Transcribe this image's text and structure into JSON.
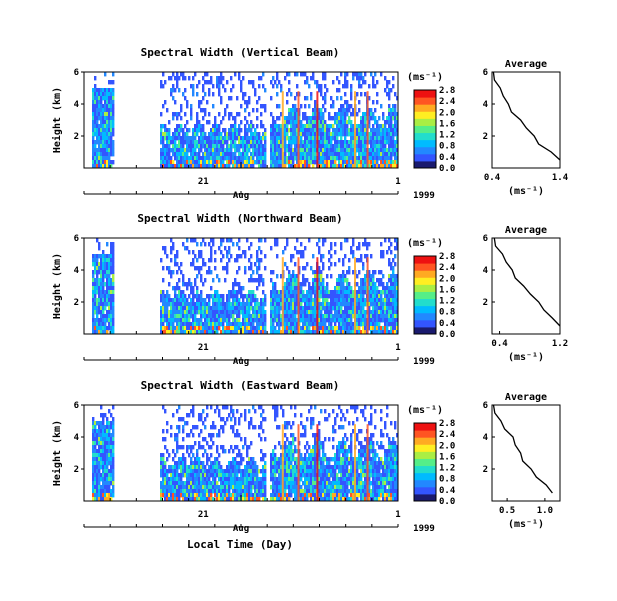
{
  "figure": {
    "xlabel": "Local Time (Day)",
    "ylabel": "Height (km)",
    "x_ticks": [
      "21",
      "1"
    ],
    "month": "Aug",
    "year": "1999",
    "cbar_unit": "(ms⁻¹)",
    "avg_xlabel": "(ms⁻¹)",
    "avg_title": "Average",
    "y_ticks": [
      "2",
      "4",
      "6"
    ],
    "cbar_ticks": [
      "0.0",
      "0.4",
      "0.8",
      "1.2",
      "1.6",
      "2.0",
      "2.4",
      "2.8"
    ],
    "colors": [
      "#1a1a6e",
      "#3355ff",
      "#2288ff",
      "#00bbff",
      "#22ddcc",
      "#55ee88",
      "#aaee44",
      "#ffee22",
      "#ffaa22",
      "#ff5522",
      "#ee1111"
    ]
  },
  "chart_data": [
    {
      "type": "heatmap",
      "title": "Spectral Width (Vertical Beam)",
      "xlabel": "Local Time (Day)",
      "ylabel": "Height (km)",
      "ylim": [
        0,
        6
      ],
      "colorbar": {
        "label": "(ms⁻¹)",
        "range": [
          0.0,
          2.8
        ]
      },
      "average_profile": {
        "title": "Average",
        "xlabel": "(ms⁻¹)",
        "x_ticks": [
          "0.4",
          "1.4"
        ],
        "xlim": [
          0.4,
          1.4
        ],
        "height_km": [
          6.0,
          5.5,
          5.0,
          4.5,
          4.0,
          3.5,
          3.0,
          2.5,
          2.0,
          1.5,
          1.0,
          0.5
        ],
        "width_ms": [
          0.42,
          0.45,
          0.5,
          0.58,
          0.62,
          0.7,
          0.8,
          0.92,
          1.0,
          1.1,
          1.25,
          1.4
        ]
      }
    },
    {
      "type": "heatmap",
      "title": "Spectral Width (Northward Beam)",
      "xlabel": "Local Time (Day)",
      "ylabel": "Height (km)",
      "ylim": [
        0,
        6
      ],
      "colorbar": {
        "label": "(ms⁻¹)",
        "range": [
          0.0,
          2.8
        ]
      },
      "average_profile": {
        "title": "Average",
        "xlabel": "(ms⁻¹)",
        "x_ticks": [
          "0.4",
          "1.2"
        ],
        "xlim": [
          0.3,
          1.2
        ],
        "height_km": [
          6.0,
          5.5,
          5.0,
          4.5,
          4.0,
          3.5,
          3.0,
          2.5,
          2.0,
          1.5,
          1.0,
          0.5
        ],
        "width_ms": [
          0.33,
          0.36,
          0.42,
          0.5,
          0.55,
          0.62,
          0.7,
          0.82,
          0.9,
          1.0,
          1.08,
          1.2
        ]
      }
    },
    {
      "type": "heatmap",
      "title": "Spectral Width (Eastward Beam)",
      "xlabel": "Local Time (Day)",
      "ylabel": "Height (km)",
      "ylim": [
        0,
        6
      ],
      "colorbar": {
        "label": "(ms⁻¹)",
        "range": [
          0.0,
          2.8
        ]
      },
      "average_profile": {
        "title": "Average",
        "xlabel": "(ms⁻¹)",
        "x_ticks": [
          "0.5",
          "1.0"
        ],
        "xlim": [
          0.3,
          1.2
        ],
        "height_km": [
          6.0,
          5.5,
          5.0,
          4.5,
          4.0,
          3.5,
          3.0,
          2.5,
          2.0,
          1.5,
          1.0,
          0.5
        ],
        "width_ms": [
          0.32,
          0.35,
          0.4,
          0.48,
          0.56,
          0.62,
          0.66,
          0.72,
          0.8,
          0.9,
          1.0,
          1.1
        ]
      }
    }
  ]
}
